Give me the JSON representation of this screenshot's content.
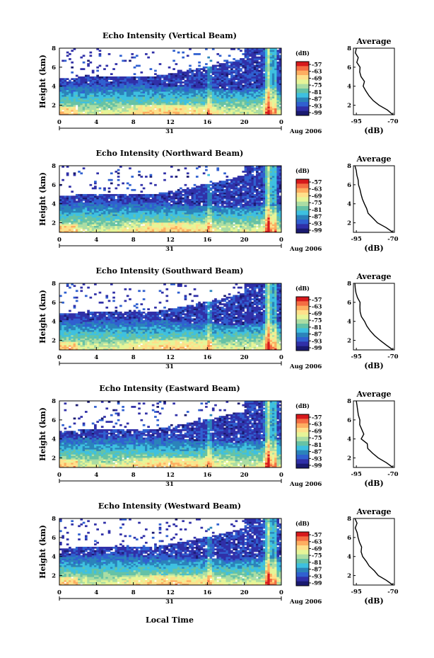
{
  "figure": {
    "x_axis_label": "Local Time",
    "date_label": "Aug 2006",
    "day_label": "31",
    "y_axis_label": "Height (km)",
    "colorbar_unit": "(dB)",
    "colorbar_ticks": [
      "-57",
      "-63",
      "-69",
      "-75",
      "-81",
      "-87",
      "-93",
      "-99"
    ],
    "colorbar_colors": [
      "#d7191c",
      "#f46d43",
      "#fdae61",
      "#fee08b",
      "#e6f598",
      "#abdda4",
      "#66c2a5",
      "#3ec0e0",
      "#2b83ba",
      "#3060d0",
      "#3030a8",
      "#1a1a70"
    ],
    "average_title": "Average",
    "average_xlabel": "(dB)"
  },
  "chart_data": [
    {
      "type": "heatmap",
      "title": "Echo Intensity (Vertical Beam)",
      "x_ticks": [
        "0",
        "4",
        "8",
        "12",
        "16",
        "20",
        "0"
      ],
      "y_ticks": [
        "2",
        "4",
        "6",
        "8"
      ],
      "xlim": [
        0,
        24
      ],
      "ylim": [
        1,
        8
      ],
      "color_range_db": [
        -99,
        -57
      ],
      "profile": {
        "x_ticks": [
          "-95",
          "-70"
        ],
        "xlim": [
          -97,
          -69
        ],
        "heights": [
          1,
          1.5,
          2,
          2.5,
          3,
          3.5,
          4,
          4.5,
          5,
          5.5,
          6,
          6.5,
          7,
          7.5,
          8
        ],
        "db": [
          -70,
          -74,
          -80,
          -84,
          -87,
          -88,
          -91,
          -90,
          -92,
          -93,
          -92,
          -94,
          -94,
          -95,
          -95
        ]
      }
    },
    {
      "type": "heatmap",
      "title": "Echo Intensity (Northward Beam)",
      "x_ticks": [
        "0",
        "4",
        "8",
        "12",
        "16",
        "20",
        "0"
      ],
      "y_ticks": [
        "2",
        "4",
        "6",
        "8"
      ],
      "xlim": [
        0,
        24
      ],
      "ylim": [
        1,
        8
      ],
      "color_range_db": [
        -99,
        -57
      ],
      "profile": {
        "x_ticks": [
          "-95",
          "-70"
        ],
        "xlim": [
          -97,
          -69
        ],
        "heights": [
          1,
          1.5,
          2,
          2.5,
          3,
          3.5,
          4,
          4.5,
          5,
          5.5,
          6,
          6.5,
          7,
          7.5,
          8
        ],
        "db": [
          -70,
          -75,
          -80,
          -84,
          -87,
          -88,
          -90,
          -91,
          -92,
          -93,
          -94,
          -94,
          -95,
          -95,
          -96
        ]
      }
    },
    {
      "type": "heatmap",
      "title": "Echo Intensity (Southward Beam)",
      "x_ticks": [
        "0",
        "4",
        "8",
        "12",
        "16",
        "20",
        "0"
      ],
      "y_ticks": [
        "2",
        "4",
        "6",
        "8"
      ],
      "xlim": [
        0,
        24
      ],
      "ylim": [
        1,
        8
      ],
      "color_range_db": [
        -99,
        -57
      ],
      "profile": {
        "x_ticks": [
          "-95",
          "-70"
        ],
        "xlim": [
          -97,
          -69
        ],
        "heights": [
          1,
          1.5,
          2,
          2.5,
          3,
          3.5,
          4,
          4.5,
          5,
          5.5,
          6,
          6.5,
          7,
          7.5,
          8
        ],
        "db": [
          -70,
          -74,
          -79,
          -83,
          -86,
          -88,
          -90,
          -91,
          -92,
          -93,
          -93,
          -94,
          -95,
          -95,
          -96
        ]
      }
    },
    {
      "type": "heatmap",
      "title": "Echo Intensity (Eastward Beam)",
      "x_ticks": [
        "0",
        "4",
        "8",
        "12",
        "16",
        "20",
        "0"
      ],
      "y_ticks": [
        "2",
        "4",
        "6",
        "8"
      ],
      "xlim": [
        0,
        24
      ],
      "ylim": [
        1,
        8
      ],
      "color_range_db": [
        -99,
        -57
      ],
      "profile": {
        "x_ticks": [
          "-95",
          "-70"
        ],
        "xlim": [
          -97,
          -69
        ],
        "heights": [
          1,
          1.5,
          2,
          2.5,
          3,
          3.5,
          4,
          4.5,
          5,
          5.5,
          6,
          6.5,
          7,
          7.5,
          8
        ],
        "db": [
          -70,
          -74,
          -80,
          -84,
          -87,
          -88,
          -91,
          -90,
          -92,
          -93,
          -92,
          -94,
          -94,
          -95,
          -95
        ]
      }
    },
    {
      "type": "heatmap",
      "title": "Echo Intensity (Westward Beam)",
      "x_ticks": [
        "0",
        "4",
        "8",
        "12",
        "16",
        "20",
        "0"
      ],
      "y_ticks": [
        "2",
        "4",
        "6",
        "8"
      ],
      "xlim": [
        0,
        24
      ],
      "ylim": [
        1,
        8
      ],
      "color_range_db": [
        -99,
        -57
      ],
      "profile": {
        "x_ticks": [
          "-95",
          "-70"
        ],
        "xlim": [
          -97,
          -69
        ],
        "heights": [
          1,
          1.5,
          2,
          2.5,
          3,
          3.5,
          4,
          4.5,
          5,
          5.5,
          6,
          6.5,
          7,
          7.5,
          8
        ],
        "db": [
          -70,
          -75,
          -80,
          -83,
          -86,
          -88,
          -90,
          -91,
          -92,
          -93,
          -94,
          -94,
          -95,
          -95,
          -96
        ]
      }
    }
  ]
}
